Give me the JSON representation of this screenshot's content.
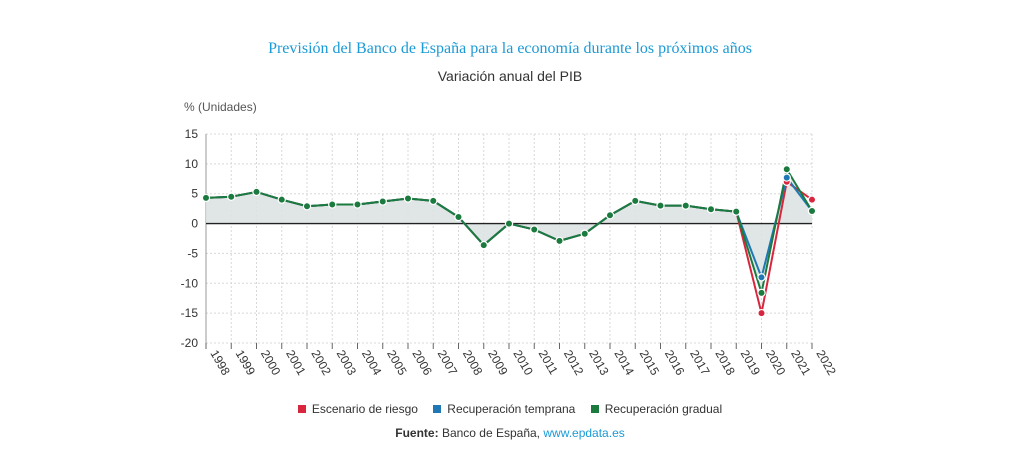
{
  "title": "Previsión del Banco de España para la economía durante los próximos años",
  "subtitle": "Variación anual del PIB",
  "source": {
    "label": "Fuente:",
    "name": "Banco de España,",
    "link": "www.epdata.es"
  },
  "colors": {
    "riesgo": "#d7263d",
    "temprana": "#1f78b4",
    "gradual": "#1b7a3e",
    "area": "#dde3e3",
    "grid": "#d8d8d8",
    "title": "#1a9ad6"
  },
  "chart_data": {
    "type": "line",
    "ylabel": "% (Unidades)",
    "ylim": [
      -20,
      15
    ],
    "yticks": [
      15,
      10,
      5,
      0,
      -5,
      -10,
      -15,
      -20
    ],
    "x": [
      "1998",
      "1999",
      "2000",
      "2001",
      "2002",
      "2003",
      "2004",
      "2005",
      "2006",
      "2007",
      "2008",
      "2009",
      "2010",
      "2011",
      "2012",
      "2013",
      "2014",
      "2015",
      "2016",
      "2017",
      "2018",
      "2019",
      "2020",
      "2021",
      "2022"
    ],
    "series": [
      {
        "name": "Escenario de riesgo",
        "color": "#d7263d",
        "values": [
          4.3,
          4.5,
          5.3,
          4.0,
          2.9,
          3.2,
          3.2,
          3.7,
          4.2,
          3.8,
          1.1,
          -3.6,
          0.0,
          -1.0,
          -2.9,
          -1.7,
          1.4,
          3.8,
          3.0,
          3.0,
          2.4,
          2.0,
          -15.0,
          7.0,
          4.0
        ]
      },
      {
        "name": "Recuperación temprana",
        "color": "#1f78b4",
        "values": [
          4.3,
          4.5,
          5.3,
          4.0,
          2.9,
          3.2,
          3.2,
          3.7,
          4.2,
          3.8,
          1.1,
          -3.6,
          0.0,
          -1.0,
          -2.9,
          -1.7,
          1.4,
          3.8,
          3.0,
          3.0,
          2.4,
          2.0,
          -9.0,
          7.7,
          2.1
        ]
      },
      {
        "name": "Recuperación gradual",
        "color": "#1b7a3e",
        "values": [
          4.3,
          4.5,
          5.3,
          4.0,
          2.9,
          3.2,
          3.2,
          3.7,
          4.2,
          3.8,
          1.1,
          -3.6,
          0.0,
          -1.0,
          -2.9,
          -1.7,
          1.4,
          3.8,
          3.0,
          3.0,
          2.4,
          2.0,
          -11.6,
          9.1,
          2.1
        ]
      }
    ],
    "legend": "bottom",
    "grid": true
  }
}
